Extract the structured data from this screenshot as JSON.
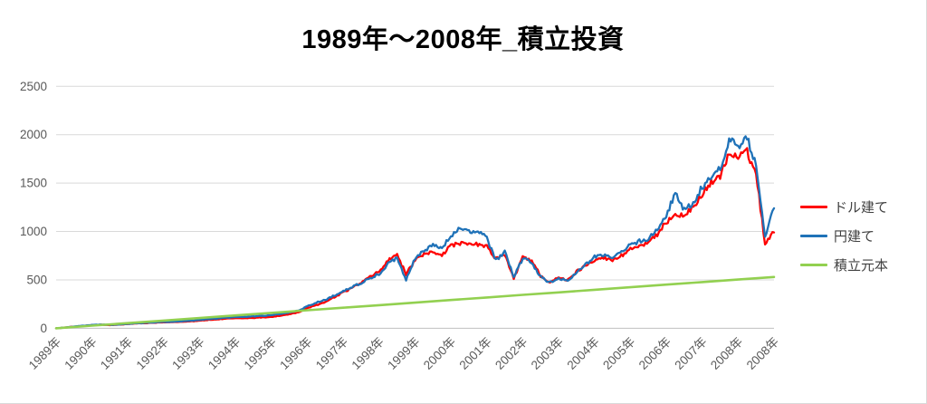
{
  "title": "1989年～2008年_積立投資",
  "colors": {
    "dollar_line": "#FF0000",
    "yen_line": "#1F72B8",
    "principal_line": "#92D050",
    "gridline": "#D9D9D9",
    "axis_line": "#BFBFBF",
    "tick_text": "#595959",
    "legend_text": "#404040",
    "title_text": "#000000"
  },
  "chart_data": {
    "type": "line",
    "title": "1989年～2008年_積立投資",
    "xlabel": "",
    "ylabel": "",
    "x_start_year": 1989,
    "x_end_year": 2009,
    "ylim": [
      0,
      2500
    ],
    "y_ticks": [
      0,
      500,
      1000,
      1500,
      2000,
      2500
    ],
    "grid": "horizontal",
    "legend_position": "right",
    "x_tick_labels": [
      "1989年",
      "1990年",
      "1991年",
      "1992年",
      "1993年",
      "1994年",
      "1995年",
      "1996年",
      "1997年",
      "1998年",
      "1999年",
      "2000年",
      "2001年",
      "2002年",
      "2003年",
      "2004年",
      "2005年",
      "2006年",
      "2007年",
      "2008年",
      "2008年"
    ],
    "series": [
      {
        "name": "ドル建て",
        "color": "#FF0000",
        "step_years": 0.25,
        "seed": 12345,
        "smooth": false,
        "values": [
          0,
          8,
          16,
          25,
          33,
          36,
          33,
          36,
          44,
          50,
          53,
          57,
          62,
          64,
          68,
          73,
          79,
          86,
          92,
          99,
          104,
          104,
          108,
          112,
          118,
          130,
          145,
          165,
          205,
          240,
          270,
          320,
          370,
          420,
          470,
          530,
          585,
          700,
          760,
          560,
          700,
          760,
          790,
          760,
          855,
          880,
          860,
          870,
          840,
          720,
          760,
          510,
          740,
          700,
          540,
          475,
          520,
          495,
          585,
          650,
          710,
          730,
          700,
          750,
          820,
          850,
          890,
          960,
          1100,
          1180,
          1160,
          1250,
          1390,
          1500,
          1580,
          1800,
          1760,
          1820,
          1600,
          880,
          990
        ]
      },
      {
        "name": "円建て",
        "color": "#1F72B8",
        "step_years": 0.25,
        "seed": 98765,
        "smooth": false,
        "values": [
          0,
          9,
          17,
          26,
          34,
          38,
          35,
          38,
          46,
          52,
          56,
          60,
          65,
          68,
          73,
          79,
          86,
          94,
          101,
          109,
          116,
          118,
          123,
          128,
          135,
          148,
          163,
          185,
          225,
          265,
          295,
          340,
          380,
          430,
          465,
          520,
          560,
          670,
          725,
          505,
          720,
          800,
          860,
          830,
          950,
          1040,
          990,
          1000,
          930,
          700,
          790,
          530,
          720,
          680,
          530,
          470,
          510,
          490,
          580,
          655,
          740,
          760,
          730,
          790,
          860,
          900,
          930,
          1020,
          1160,
          1400,
          1220,
          1300,
          1460,
          1560,
          1650,
          1940,
          1880,
          1960,
          1700,
          950,
          1240
        ]
      },
      {
        "name": "積立元本",
        "color": "#92D050",
        "step_years": 1.0,
        "seed": 1,
        "smooth": true,
        "values": [
          0,
          27,
          53,
          80,
          106,
          133,
          159,
          186,
          212,
          239,
          265,
          292,
          318,
          345,
          371,
          398,
          424,
          451,
          477,
          504,
          530
        ]
      }
    ]
  }
}
